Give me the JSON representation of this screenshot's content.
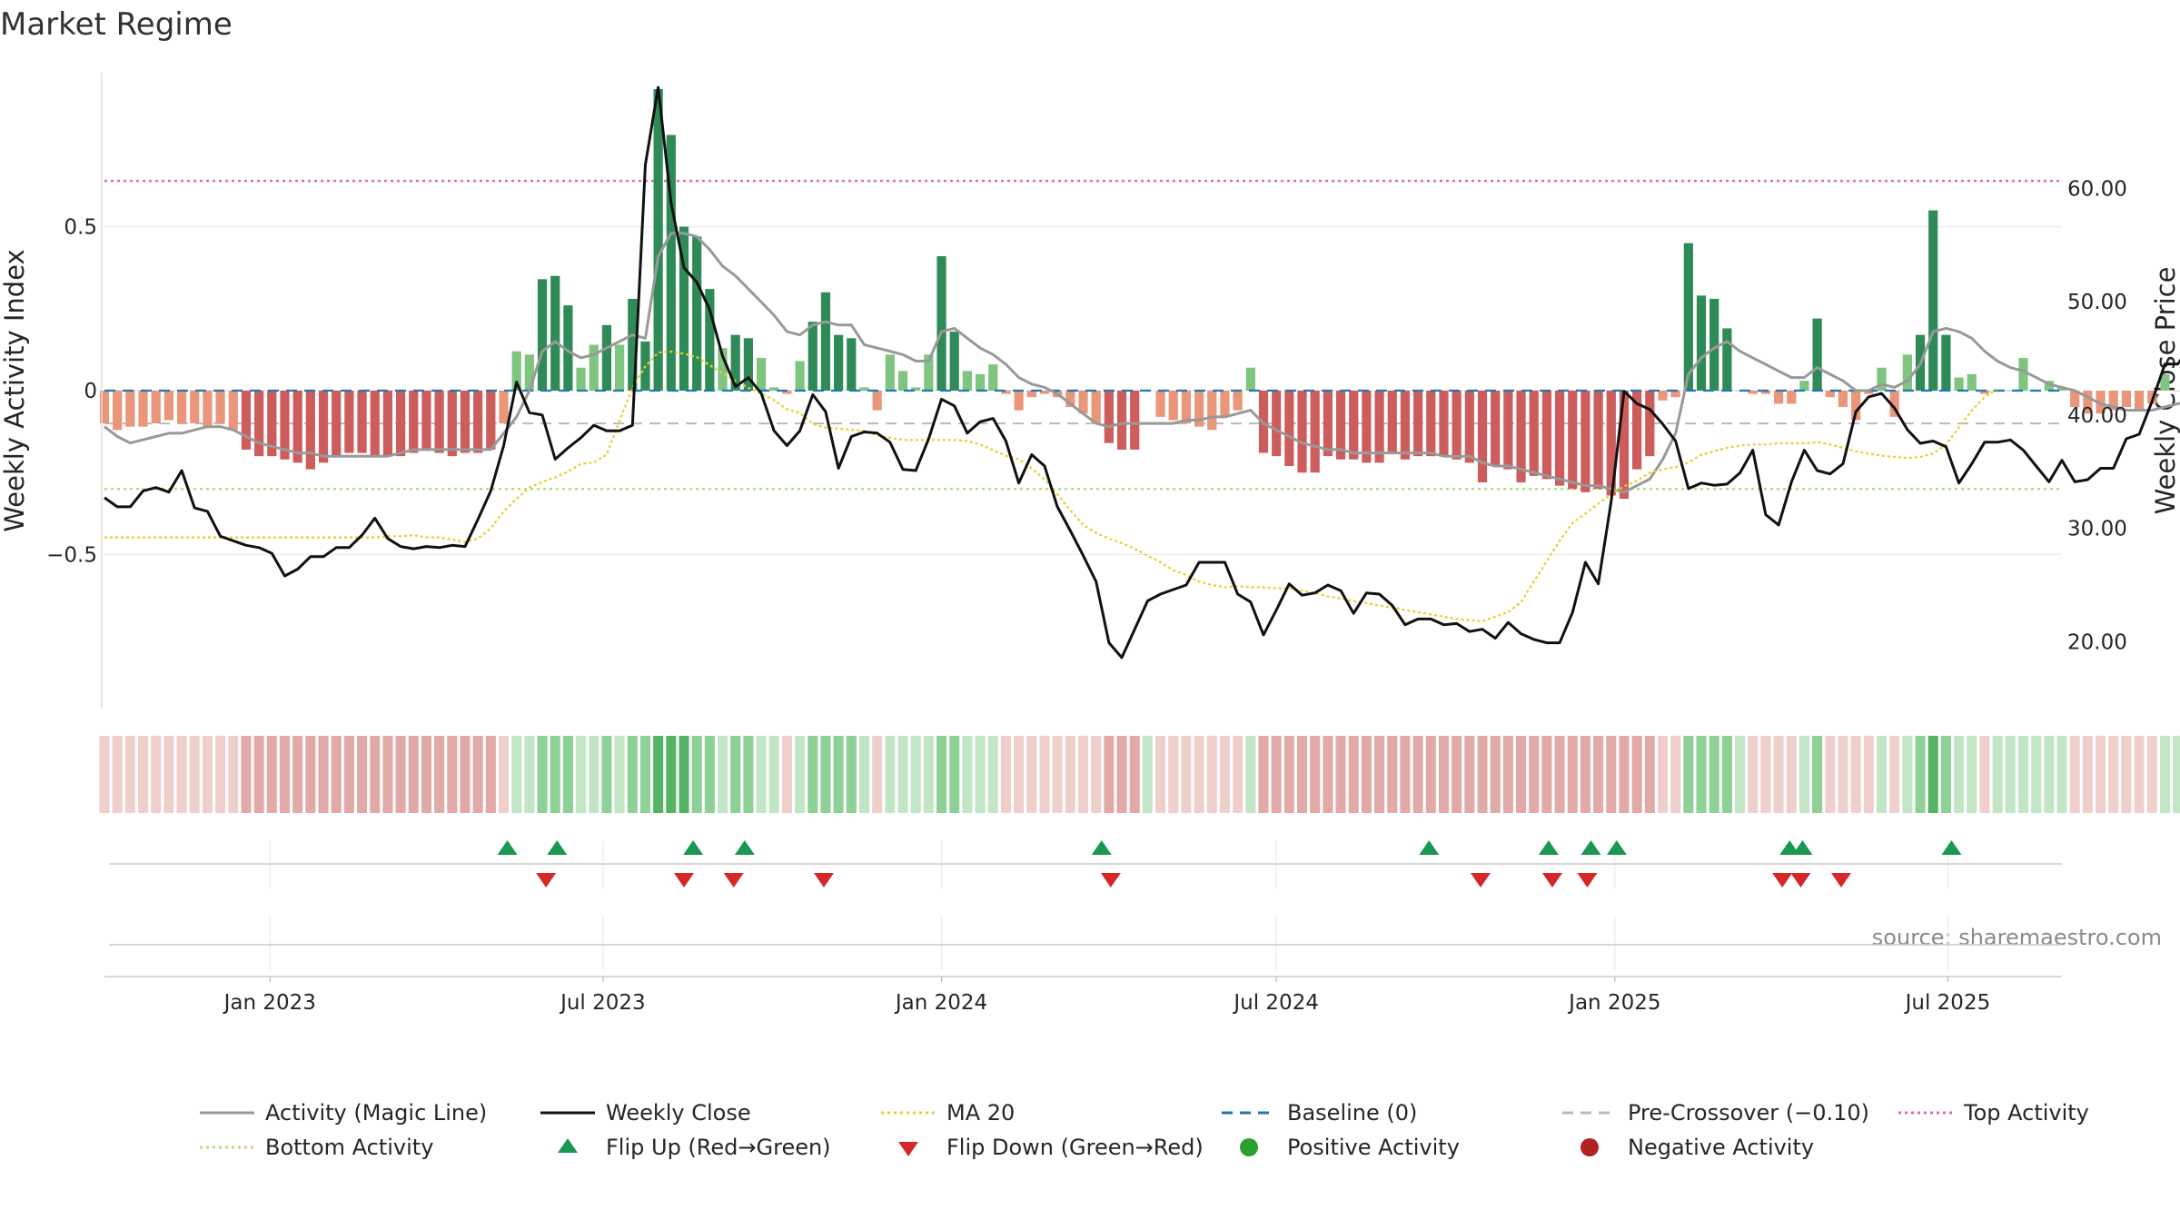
{
  "chart_data": {
    "type": "bar",
    "title": "Market Regime",
    "ylabel": "Weekly Activity Index",
    "y2label": "Weekly Close Price",
    "ylim": [
      -0.97,
      0.97
    ],
    "y2lim": [
      14.1,
      70.2
    ],
    "y_ticks": [
      {
        "v": 0.5,
        "label": "0.5"
      },
      {
        "v": 0,
        "label": "0"
      },
      {
        "v": -0.5,
        "label": "−0.5"
      }
    ],
    "y2_ticks": [
      {
        "v": 60,
        "label": "60.00"
      },
      {
        "v": 50,
        "label": "50.00"
      },
      {
        "v": 40,
        "label": "40.00"
      },
      {
        "v": 30,
        "label": "30.00"
      },
      {
        "v": 20,
        "label": "20.00"
      }
    ],
    "x_range": [
      "2022-10-03",
      "2025-09-01"
    ],
    "x_ticks": [
      {
        "date": "2023-01-01",
        "label": "Jan 2023"
      },
      {
        "date": "2023-07-01",
        "label": "Jul 2023"
      },
      {
        "date": "2024-01-01",
        "label": "Jan 2024"
      },
      {
        "date": "2024-07-01",
        "label": "Jul 2024"
      },
      {
        "date": "2025-01-01",
        "label": "Jan 2025"
      },
      {
        "date": "2025-07-01",
        "label": "Jul 2025"
      }
    ],
    "grid": true,
    "legend_placement": "bottom",
    "start_date": "2022-10-03",
    "activity_index": [
      -0.1,
      -0.12,
      -0.11,
      -0.11,
      -0.1,
      -0.09,
      -0.1,
      -0.1,
      -0.11,
      -0.1,
      -0.12,
      -0.18,
      -0.2,
      -0.2,
      -0.21,
      -0.22,
      -0.24,
      -0.22,
      -0.2,
      -0.19,
      -0.19,
      -0.2,
      -0.2,
      -0.2,
      -0.19,
      -0.18,
      -0.19,
      -0.2,
      -0.19,
      -0.19,
      -0.18,
      -0.1,
      0.12,
      0.11,
      0.34,
      0.35,
      0.26,
      0.07,
      0.14,
      0.2,
      0.14,
      0.28,
      0.15,
      0.92,
      0.78,
      0.5,
      0.47,
      0.31,
      0.13,
      0.17,
      0.16,
      0.1,
      0.01,
      -0.01,
      0.09,
      0.21,
      0.3,
      0.17,
      0.16,
      0.01,
      -0.06,
      0.11,
      0.06,
      0.01,
      0.11,
      0.41,
      0.18,
      0.06,
      0.05,
      0.08,
      -0.01,
      -0.06,
      -0.02,
      -0.01,
      -0.02,
      -0.05,
      -0.07,
      -0.1,
      -0.16,
      -0.18,
      -0.18,
      0.0,
      -0.08,
      -0.09,
      -0.1,
      -0.11,
      -0.12,
      -0.08,
      -0.06,
      0.07,
      -0.19,
      -0.2,
      -0.23,
      -0.25,
      -0.25,
      -0.2,
      -0.21,
      -0.21,
      -0.22,
      -0.22,
      -0.19,
      -0.21,
      -0.2,
      -0.2,
      -0.2,
      -0.21,
      -0.22,
      -0.28,
      -0.23,
      -0.24,
      -0.28,
      -0.26,
      -0.27,
      -0.29,
      -0.3,
      -0.31,
      -0.3,
      -0.32,
      -0.33,
      -0.24,
      -0.2,
      -0.03,
      -0.02,
      0.45,
      0.29,
      0.28,
      0.19,
      0.0,
      -0.01,
      -0.01,
      -0.04,
      -0.04,
      0.03,
      0.22,
      -0.02,
      -0.05,
      -0.09,
      -0.01,
      0.07,
      -0.08,
      0.11,
      0.17,
      0.55,
      0.17,
      0.04,
      0.05,
      -0.01,
      0.0,
      0.0,
      0.1,
      0.0,
      0.03,
      0.01,
      -0.05,
      -0.07,
      -0.07,
      -0.06,
      -0.05,
      -0.06,
      -0.04,
      0.05,
      0.0,
      0.38,
      0.29,
      0.23,
      0.12,
      0.18,
      0.38,
      0.19,
      0.04
    ],
    "magic_line": [
      -0.11,
      -0.14,
      -0.16,
      -0.15,
      -0.14,
      -0.13,
      -0.13,
      -0.12,
      -0.11,
      -0.11,
      -0.12,
      -0.14,
      -0.16,
      -0.17,
      -0.18,
      -0.19,
      -0.19,
      -0.2,
      -0.2,
      -0.2,
      -0.2,
      -0.2,
      -0.2,
      -0.19,
      -0.18,
      -0.18,
      -0.18,
      -0.18,
      -0.18,
      -0.18,
      -0.18,
      -0.13,
      -0.08,
      0.0,
      0.12,
      0.15,
      0.12,
      0.1,
      0.11,
      0.13,
      0.15,
      0.17,
      0.16,
      0.41,
      0.48,
      0.48,
      0.47,
      0.43,
      0.38,
      0.35,
      0.31,
      0.27,
      0.23,
      0.18,
      0.17,
      0.2,
      0.21,
      0.2,
      0.2,
      0.14,
      0.13,
      0.12,
      0.11,
      0.09,
      0.09,
      0.18,
      0.19,
      0.16,
      0.13,
      0.11,
      0.08,
      0.04,
      0.02,
      0.01,
      -0.01,
      -0.04,
      -0.07,
      -0.1,
      -0.11,
      -0.1,
      -0.1,
      -0.1,
      -0.1,
      -0.1,
      -0.09,
      -0.09,
      -0.08,
      -0.08,
      -0.07,
      -0.06,
      -0.1,
      -0.12,
      -0.14,
      -0.16,
      -0.17,
      -0.18,
      -0.18,
      -0.19,
      -0.19,
      -0.19,
      -0.19,
      -0.19,
      -0.19,
      -0.19,
      -0.2,
      -0.2,
      -0.2,
      -0.22,
      -0.23,
      -0.23,
      -0.24,
      -0.25,
      -0.26,
      -0.27,
      -0.28,
      -0.29,
      -0.29,
      -0.3,
      -0.31,
      -0.29,
      -0.27,
      -0.21,
      -0.13,
      0.05,
      0.1,
      0.13,
      0.15,
      0.12,
      0.1,
      0.08,
      0.06,
      0.04,
      0.04,
      0.07,
      0.05,
      0.03,
      0.0,
      0.0,
      0.02,
      0.01,
      0.03,
      0.08,
      0.18,
      0.19,
      0.18,
      0.16,
      0.12,
      0.09,
      0.07,
      0.06,
      0.04,
      0.02,
      0.01,
      0.0,
      -0.02,
      -0.04,
      -0.05,
      -0.06,
      -0.06,
      -0.06,
      -0.05,
      -0.04,
      -0.03,
      0.05,
      0.11,
      0.15,
      0.15,
      0.16,
      0.18,
      0.17,
      0.14
    ],
    "weekly_close": [
      32.7,
      31.9,
      31.9,
      33.3,
      33.6,
      33.2,
      35.1,
      31.8,
      31.5,
      29.3,
      28.9,
      28.5,
      28.3,
      27.8,
      25.8,
      26.4,
      27.5,
      27.5,
      28.3,
      28.3,
      29.4,
      30.9,
      29.1,
      28.4,
      28.2,
      28.4,
      28.3,
      28.5,
      28.4,
      30.8,
      33.3,
      37.3,
      42.9,
      40.2,
      40.0,
      36.1,
      37.1,
      38.0,
      39.1,
      38.6,
      38.6,
      39.1,
      62.1,
      68.9,
      58.7,
      53.0,
      51.7,
      49.3,
      45.2,
      42.5,
      43.3,
      41.9,
      38.6,
      37.3,
      38.6,
      41.8,
      40.3,
      35.3,
      38.1,
      38.5,
      38.4,
      37.6,
      35.2,
      35.1,
      37.9,
      41.4,
      40.8,
      38.4,
      39.4,
      39.7,
      37.7,
      34.0,
      36.5,
      35.5,
      31.9,
      29.8,
      27.6,
      25.3,
      19.9,
      18.6,
      21.1,
      23.6,
      24.2,
      24.6,
      25.0,
      27.0,
      27.0,
      27.0,
      24.2,
      23.5,
      20.6,
      22.8,
      25.1,
      24.1,
      24.3,
      25.0,
      24.5,
      22.5,
      24.3,
      24.2,
      23.2,
      21.5,
      22.0,
      22.0,
      21.5,
      21.6,
      20.9,
      21.1,
      20.3,
      21.7,
      20.7,
      20.2,
      19.9,
      19.9,
      22.6,
      27.0,
      25.1,
      32.4,
      42.1,
      41.0,
      40.5,
      39.2,
      37.7,
      33.5,
      34.0,
      33.8,
      33.9,
      34.9,
      36.9,
      31.2,
      30.3,
      34.1,
      36.9,
      35.1,
      34.8,
      35.7,
      40.3,
      41.6,
      41.9,
      40.6,
      38.7,
      37.5,
      37.7,
      37.2,
      34.0,
      35.7,
      37.6,
      37.6,
      37.8,
      36.9,
      35.5,
      34.1,
      36.0,
      34.1,
      34.3,
      35.3,
      35.3,
      37.9,
      38.3,
      41.2,
      44.5,
      44.5,
      46.1,
      49.1,
      47.1,
      49.8,
      41.9,
      42.7
    ],
    "ma20": [
      29.2,
      29.2,
      29.2,
      29.2,
      29.2,
      29.2,
      29.2,
      29.2,
      29.2,
      29.2,
      29.2,
      29.2,
      29.2,
      29.2,
      29.2,
      29.2,
      29.2,
      29.2,
      29.2,
      29.2,
      29.2,
      29.2,
      29.3,
      29.3,
      29.4,
      29.2,
      29.2,
      29.0,
      28.8,
      29.1,
      30.0,
      31.5,
      32.6,
      33.6,
      34.1,
      34.5,
      35.0,
      35.7,
      35.8,
      36.5,
      39.5,
      42.4,
      44.3,
      45.5,
      45.6,
      45.4,
      45.1,
      44.4,
      43.7,
      43.0,
      42.4,
      41.9,
      41.3,
      40.5,
      40.2,
      39.2,
      38.9,
      38.8,
      38.7,
      38.6,
      38.2,
      38.0,
      37.8,
      37.8,
      37.8,
      37.8,
      37.8,
      37.7,
      37.4,
      36.9,
      36.4,
      36.1,
      35.3,
      34.3,
      33.0,
      31.6,
      30.3,
      29.6,
      29.1,
      28.7,
      28.2,
      27.6,
      27.0,
      26.3,
      25.9,
      25.3,
      25.0,
      24.8,
      24.9,
      24.8,
      24.8,
      24.7,
      24.7,
      24.5,
      24.3,
      24.0,
      23.8,
      23.6,
      23.4,
      23.2,
      23.0,
      22.8,
      22.6,
      22.4,
      22.2,
      22.0,
      21.9,
      21.8,
      22.2,
      22.6,
      23.5,
      25.3,
      27.1,
      28.9,
      30.5,
      31.3,
      32.2,
      33.0,
      33.7,
      34.2,
      34.9,
      35.2,
      35.4,
      35.8,
      36.5,
      36.8,
      37.1,
      37.3,
      37.4,
      37.4,
      37.5,
      37.5,
      37.5,
      37.6,
      37.4,
      37.1,
      36.8,
      36.6,
      36.4,
      36.3,
      36.2,
      36.3,
      36.6,
      37.4,
      38.9,
      40.4,
      41.6,
      42.3
    ],
    "flips": [
      {
        "date": "2023-05-10",
        "dir": "up"
      },
      {
        "date": "2023-06-06",
        "dir": "up"
      },
      {
        "date": "2023-05-31",
        "dir": "down"
      },
      {
        "date": "2023-08-14",
        "dir": "down"
      },
      {
        "date": "2023-08-19",
        "dir": "up"
      },
      {
        "date": "2023-09-16",
        "dir": "up"
      },
      {
        "date": "2023-09-10",
        "dir": "down"
      },
      {
        "date": "2023-10-29",
        "dir": "down"
      },
      {
        "date": "2024-03-28",
        "dir": "up"
      },
      {
        "date": "2024-04-02",
        "dir": "down"
      },
      {
        "date": "2024-09-22",
        "dir": "up"
      },
      {
        "date": "2024-10-20",
        "dir": "down"
      },
      {
        "date": "2024-11-26",
        "dir": "up"
      },
      {
        "date": "2024-11-28",
        "dir": "down"
      },
      {
        "date": "2024-12-19",
        "dir": "up"
      },
      {
        "date": "2024-12-17",
        "dir": "down"
      },
      {
        "date": "2025-01-02",
        "dir": "up"
      },
      {
        "date": "2025-04-06",
        "dir": "up"
      },
      {
        "date": "2025-04-02",
        "dir": "down"
      },
      {
        "date": "2025-04-12",
        "dir": "down"
      },
      {
        "date": "2025-04-13",
        "dir": "up"
      },
      {
        "date": "2025-05-04",
        "dir": "down"
      },
      {
        "date": "2025-07-03",
        "dir": "up"
      }
    ],
    "reference_lines": {
      "top_activity": 0.64,
      "bottom_activity": -0.3,
      "baseline": 0,
      "pre_crossover": -0.1
    },
    "colors": {
      "strong_green": "#2e8b57",
      "light_green": "#7fc47f",
      "strong_red": "#cd5c5c",
      "light_red": "#e9967a",
      "close": "#111111",
      "magic_line": "#999999",
      "ma20": "#e6cf2c",
      "baseline": "#1f77b4",
      "pre_crossover": "#bbbbbb",
      "top_activity": "#e5708a",
      "bottom_activity": "#b0e07d",
      "flip_up": "#1a9850",
      "flip_down": "#d62728",
      "positive": "#2ca02c",
      "negative": "#b22222"
    },
    "legend": [
      {
        "label": "Activity (Magic Line)",
        "marker": "line",
        "color": "#999999",
        "dash": ""
      },
      {
        "label": "Weekly Close",
        "marker": "line",
        "color": "#111111",
        "dash": ""
      },
      {
        "label": "MA 20",
        "marker": "line",
        "color": "#e6cf2c",
        "dash": "3,4"
      },
      {
        "label": "Baseline (0)",
        "marker": "line",
        "color": "#1f77b4",
        "dash": "12,8"
      },
      {
        "label": "Pre-Crossover (−0.10)",
        "marker": "line",
        "color": "#bbbbbb",
        "dash": "12,8"
      },
      {
        "label": "Top Activity",
        "marker": "line",
        "color": "#e5708a",
        "dash": "3,4"
      },
      {
        "label": "Bottom Activity",
        "marker": "line",
        "color": "#b0e07d",
        "dash": "3,4"
      },
      {
        "label": "Flip Up (Red→Green)",
        "marker": "triangle-up",
        "color": "#1a9850"
      },
      {
        "label": "Flip Down (Green→Red)",
        "marker": "triangle-down",
        "color": "#d62728"
      },
      {
        "label": "Positive Activity",
        "marker": "circle",
        "color": "#2ca02c"
      },
      {
        "label": "Negative Activity",
        "marker": "circle",
        "color": "#b22222"
      }
    ]
  },
  "source_note": "source: sharemaestro.com"
}
